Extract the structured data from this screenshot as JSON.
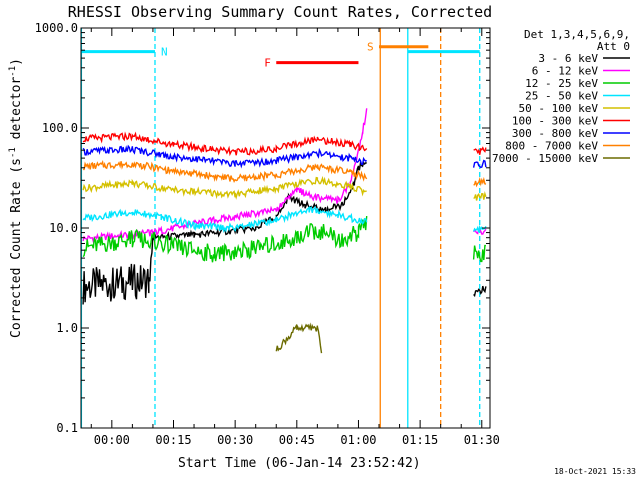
{
  "chart_data": {
    "type": "line",
    "title": "RHESSI Observing Summary Count Rates, Corrected",
    "ylabel_main": "Corrected Count Rate (s",
    "ylabel_sup1": "-1",
    "ylabel_mid": " detector",
    "ylabel_sup2": "-1",
    "ylabel_end": ")",
    "xlabel": "Start Time (06-Jan-14 23:52:42)",
    "yscale": "log",
    "ylim": [
      0.1,
      1000.0
    ],
    "xlim_minutes": [
      -7.5,
      92
    ],
    "x_unit": "minutes after 00:00",
    "y_ticks": [
      "1000.0",
      "100.0",
      "10.0",
      "1.0",
      "0.1"
    ],
    "y_tick_values": [
      1000,
      100,
      10,
      1,
      0.1
    ],
    "x_ticks": [
      "00:00",
      "00:15",
      "00:30",
      "00:45",
      "01:00",
      "01:15",
      "01:30"
    ],
    "x_tick_values": [
      0,
      15,
      30,
      45,
      60,
      75,
      90
    ],
    "legend_header": [
      "Det 1,3,4,5,6,9,",
      "Att 0"
    ],
    "legend_position": "right",
    "timestamp": "18-Oct-2021 15:33",
    "series": [
      {
        "name": "3 - 6 keV",
        "color": "#000000",
        "values": [
          [
            -7,
            2.6
          ],
          [
            0,
            2.8
          ],
          [
            9,
            3.0
          ],
          [
            10,
            8
          ],
          [
            20,
            8.5
          ],
          [
            35,
            10
          ],
          [
            40,
            13
          ],
          [
            43,
            20
          ],
          [
            47,
            17
          ],
          [
            52,
            15
          ],
          [
            56,
            17
          ],
          [
            59,
            28
          ],
          [
            60,
            40
          ],
          [
            62,
            46
          ],
          [
            88,
            2.2
          ],
          [
            91,
            2.5
          ]
        ]
      },
      {
        "name": "6 - 12 keV",
        "color": "#ff00ff",
        "values": [
          [
            -7,
            7.8
          ],
          [
            5,
            8.6
          ],
          [
            10,
            9
          ],
          [
            20,
            11
          ],
          [
            30,
            13
          ],
          [
            40,
            15
          ],
          [
            45,
            24
          ],
          [
            50,
            20
          ],
          [
            55,
            19
          ],
          [
            58,
            28
          ],
          [
            61,
            90
          ],
          [
            62,
            150
          ],
          [
            88,
            9
          ],
          [
            91,
            9.5
          ]
        ]
      },
      {
        "name": "12 - 25 keV",
        "color": "#00cc00",
        "values": [
          [
            -7,
            6.3
          ],
          [
            5,
            7.8
          ],
          [
            10,
            7.5
          ],
          [
            15,
            6.5
          ],
          [
            25,
            5.5
          ],
          [
            35,
            6.2
          ],
          [
            45,
            8
          ],
          [
            50,
            9.5
          ],
          [
            56,
            7.5
          ],
          [
            60,
            9
          ],
          [
            62,
            11
          ],
          [
            88,
            5.5
          ],
          [
            91,
            5.8
          ]
        ]
      },
      {
        "name": "25 - 50 keV",
        "color": "#00e5ff",
        "values": [
          [
            -7,
            12.5
          ],
          [
            5,
            14.5
          ],
          [
            12,
            13
          ],
          [
            20,
            10.5
          ],
          [
            30,
            10
          ],
          [
            40,
            12
          ],
          [
            48,
            15.5
          ],
          [
            55,
            13.5
          ],
          [
            62,
            11.5
          ],
          [
            88,
            9.5
          ],
          [
            91,
            10
          ]
        ]
      },
      {
        "name": "50 - 100 keV",
        "color": "#d4c000",
        "values": [
          [
            -7,
            25
          ],
          [
            5,
            28
          ],
          [
            15,
            24
          ],
          [
            30,
            21.5
          ],
          [
            40,
            25
          ],
          [
            50,
            30
          ],
          [
            58,
            26
          ],
          [
            62,
            23
          ],
          [
            88,
            20
          ],
          [
            91,
            20.5
          ]
        ]
      },
      {
        "name": "100 - 300 keV",
        "color": "#ff0000",
        "values": [
          [
            -7,
            78
          ],
          [
            5,
            83
          ],
          [
            15,
            68
          ],
          [
            30,
            57
          ],
          [
            40,
            62
          ],
          [
            50,
            77
          ],
          [
            58,
            68
          ],
          [
            62,
            60
          ],
          [
            88,
            57
          ],
          [
            91,
            59
          ]
        ]
      },
      {
        "name": "300 - 800 keV",
        "color": "#0000ff",
        "values": [
          [
            -7,
            58
          ],
          [
            5,
            61
          ],
          [
            15,
            52
          ],
          [
            30,
            44
          ],
          [
            40,
            47
          ],
          [
            50,
            56
          ],
          [
            58,
            50
          ],
          [
            62,
            45
          ],
          [
            88,
            42
          ],
          [
            91,
            44
          ]
        ]
      },
      {
        "name": "800 - 7000 keV",
        "color": "#ff8000",
        "values": [
          [
            -7,
            41
          ],
          [
            5,
            44
          ],
          [
            15,
            37
          ],
          [
            30,
            31
          ],
          [
            40,
            34
          ],
          [
            50,
            41
          ],
          [
            58,
            36
          ],
          [
            62,
            32
          ],
          [
            88,
            28
          ],
          [
            91,
            29
          ]
        ]
      },
      {
        "name": "7000 - 15000 keV",
        "color": "#6b6b00",
        "values": [
          [
            40,
            0.6
          ],
          [
            45,
            1.0
          ],
          [
            50,
            1.0
          ],
          [
            51,
            0.6
          ]
        ]
      }
    ],
    "flags": [
      {
        "label": "N",
        "color": "#00e5ff",
        "y": 580,
        "segments": [
          [
            -7.5,
            10.5
          ],
          [
            72,
            89.5
          ]
        ]
      },
      {
        "label": "F",
        "color": "#ff0000",
        "y": 450,
        "segments": [
          [
            40,
            60
          ]
        ]
      },
      {
        "label": "S",
        "color": "#ff8000",
        "y": 650,
        "segments": [
          [
            65,
            77
          ]
        ]
      }
    ],
    "vertical_markers": [
      {
        "x": -7.4,
        "color": "#00e5ff",
        "style": "solid"
      },
      {
        "x": 10.5,
        "color": "#00e5ff",
        "style": "dashed"
      },
      {
        "x": 65.3,
        "color": "#ff8000",
        "style": "solid"
      },
      {
        "x": 72.0,
        "color": "#00e5ff",
        "style": "solid"
      },
      {
        "x": 80.0,
        "color": "#ff8000",
        "style": "dashed"
      },
      {
        "x": 89.5,
        "color": "#00e5ff",
        "style": "dashed"
      }
    ]
  }
}
